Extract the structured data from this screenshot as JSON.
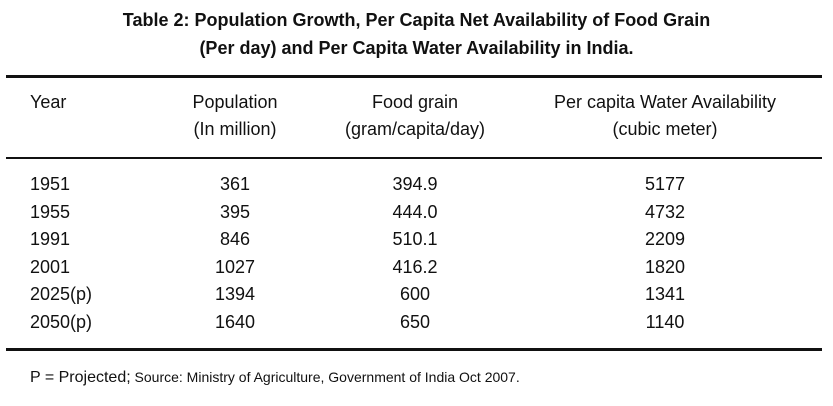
{
  "caption": {
    "line1": "Table 2: Population Growth, Per Capita Net Availability of Food Grain",
    "line2": "(Per day) and Per Capita Water Availability in India."
  },
  "headers": {
    "year": "Year",
    "population": {
      "line1": "Population",
      "line2": "(In million)"
    },
    "food_grain": {
      "line1": "Food grain",
      "line2": "(gram/capita/day)"
    },
    "water": {
      "line1": "Per capita Water Availability",
      "line2": "(cubic meter)"
    }
  },
  "rows": [
    {
      "year": "1951",
      "population": "361",
      "food_grain": "394.9",
      "water": "5177"
    },
    {
      "year": "1955",
      "population": "395",
      "food_grain": "444.0",
      "water": "4732"
    },
    {
      "year": "1991",
      "population": "846",
      "food_grain": "510.1",
      "water": "2209"
    },
    {
      "year": "2001",
      "population": "1027",
      "food_grain": "416.2",
      "water": "1820"
    },
    {
      "year": "2025(p)",
      "population": "1394",
      "food_grain": "600",
      "water": "1341"
    },
    {
      "year": "2050(p)",
      "population": "1640",
      "food_grain": "650",
      "water": "1140"
    }
  ],
  "footnote": {
    "key": "P = Projected;",
    "source": " Source: Ministry of Agriculture, Government of India Oct 2007."
  }
}
